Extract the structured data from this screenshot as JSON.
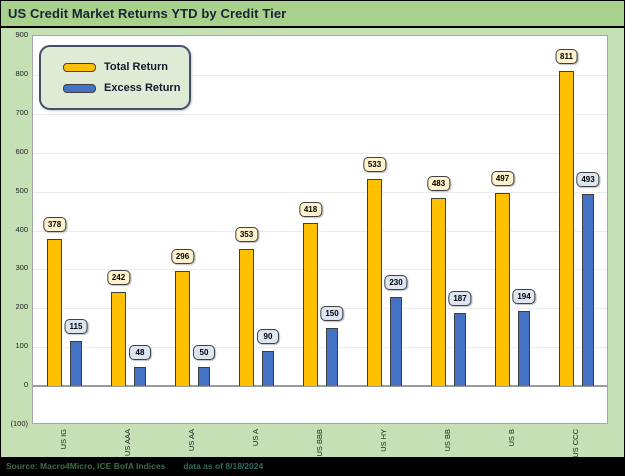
{
  "title_bar": {
    "title": "US Credit Market Returns YTD by Credit Tier"
  },
  "chart_data": {
    "type": "bar",
    "title": "US Credit Market Returns YTD by Credit Tier",
    "categories": [
      "US IG",
      "US AAA",
      "US AA",
      "US A",
      "US BBB",
      "US HY",
      "US BB",
      "US B",
      "US CCC"
    ],
    "series": [
      {
        "name": "Total Return",
        "values": [
          378,
          242,
          296,
          353,
          418,
          533,
          483,
          497,
          811
        ],
        "color": "#FFC000",
        "label_fill": "#FFF2CC"
      },
      {
        "name": "Excess Return",
        "values": [
          115,
          48,
          50,
          90,
          150,
          230,
          187,
          194,
          493
        ],
        "color": "#4472C4",
        "label_fill": "#DCE6F3"
      }
    ],
    "xlabel": "",
    "ylabel": "",
    "ylim": [
      -100,
      900
    ],
    "ytick_step": 100,
    "ytick_labels": [
      "900",
      "800",
      "700",
      "600",
      "500",
      "400",
      "300",
      "200",
      "100",
      "0",
      "(100)"
    ],
    "grid": true,
    "legend_position": "top-left",
    "data_labels": true
  },
  "footer": {
    "source": "Source: Macro4Micro, ICE BofA Indices",
    "as_of": "data as of 8/18/2024"
  },
  "colors": {
    "page_bg": "#c5e0b4",
    "title_bg": "#a9d18e",
    "plot_bg": "#ffffff",
    "gridline": "#ececec",
    "zero_line": "#9b9b9b",
    "bar_border": "#3f3f3f",
    "label_border": "#404040",
    "legend_bg": "#e0ebd6",
    "footer_bg": "#000000",
    "footer_source_text": "#3f6b46",
    "footer_asof_text": "#2f6e5f"
  }
}
